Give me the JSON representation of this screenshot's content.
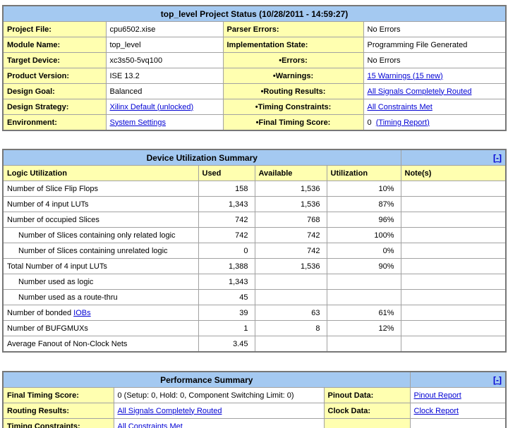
{
  "colors": {
    "header_blue": "#a4c9f1",
    "label_yellow": "#ffffb0",
    "link_blue": "#0000d4",
    "border_gray": "#a2a2a2",
    "page_background": "#ffffff"
  },
  "project_status": {
    "title": "top_level Project Status (10/28/2011 - 14:59:27)",
    "rows": [
      {
        "label1": "Project File:",
        "value1": {
          "text": "cpu6502.xise",
          "link": false
        },
        "label2": "Parser Errors:",
        "center2": false,
        "value2": {
          "text": "No Errors",
          "link": false
        }
      },
      {
        "label1": "Module Name:",
        "value1": {
          "text": "top_level",
          "link": false
        },
        "label2": "Implementation State:",
        "center2": false,
        "value2": {
          "text": "Programming File Generated",
          "link": false
        }
      },
      {
        "label1": "Target Device:",
        "value1": {
          "text": "xc3s50-5vq100",
          "link": false
        },
        "label2": "•Errors:",
        "center2": true,
        "value2": {
          "text": "No Errors",
          "link": false
        }
      },
      {
        "label1": "Product Version:",
        "value1": {
          "text": "ISE 13.2",
          "link": false
        },
        "label2": "•Warnings:",
        "center2": true,
        "value2": {
          "text": "15 Warnings (15 new)",
          "link": true
        }
      },
      {
        "label1": "Design Goal:",
        "value1": {
          "text": "Balanced",
          "link": false
        },
        "label2": "•Routing Results:",
        "center2": true,
        "value2": {
          "text": "All Signals Completely Routed",
          "link": true
        }
      },
      {
        "label1": "Design Strategy:",
        "value1": {
          "text": "Xilinx Default (unlocked)",
          "link": true
        },
        "label2": "•Timing Constraints:",
        "center2": true,
        "value2": {
          "text": "All Constraints Met",
          "link": true
        }
      },
      {
        "label1": "Environment:",
        "value1": {
          "text": "System Settings",
          "link": true
        },
        "label2": "•Final Timing Score:",
        "center2": true,
        "value2": {
          "text": "0",
          "link": false,
          "suffix_link": "(Timing Report)"
        }
      }
    ]
  },
  "device_utilization": {
    "title": "Device Utilization Summary",
    "collapse_label": "[-]",
    "columns": [
      "Logic Utilization",
      "Used",
      "Available",
      "Utilization",
      "Note(s)"
    ],
    "rows": [
      {
        "label": "Number of Slice Flip Flops",
        "indent": false,
        "used": "158",
        "available": "1,536",
        "utilization": "10%",
        "note": ""
      },
      {
        "label": "Number of 4 input LUTs",
        "indent": false,
        "used": "1,343",
        "available": "1,536",
        "utilization": "87%",
        "note": ""
      },
      {
        "label": "Number of occupied Slices",
        "indent": false,
        "used": "742",
        "available": "768",
        "utilization": "96%",
        "note": ""
      },
      {
        "label": "Number of Slices containing only related logic",
        "indent": true,
        "used": "742",
        "available": "742",
        "utilization": "100%",
        "note": ""
      },
      {
        "label": "Number of Slices containing unrelated logic",
        "indent": true,
        "used": "0",
        "available": "742",
        "utilization": "0%",
        "note": ""
      },
      {
        "label": "Total Number of 4 input LUTs",
        "indent": false,
        "used": "1,388",
        "available": "1,536",
        "utilization": "90%",
        "note": ""
      },
      {
        "label": "Number used as logic",
        "indent": true,
        "used": "1,343",
        "available": "",
        "utilization": "",
        "note": ""
      },
      {
        "label": "Number used as a route-thru",
        "indent": true,
        "used": "45",
        "available": "",
        "utilization": "",
        "note": ""
      },
      {
        "label": "Number of bonded ",
        "label_link": "IOBs",
        "indent": false,
        "used": "39",
        "available": "63",
        "utilization": "61%",
        "note": ""
      },
      {
        "label": "Number of BUFGMUXs",
        "indent": false,
        "used": "1",
        "available": "8",
        "utilization": "12%",
        "note": ""
      },
      {
        "label": "Average Fanout of Non-Clock Nets",
        "indent": false,
        "used": "3.45",
        "available": "",
        "utilization": "",
        "note": ""
      }
    ]
  },
  "performance_summary": {
    "title": "Performance Summary",
    "collapse_label": "[-]",
    "rows": [
      {
        "label1": "Final Timing Score:",
        "value1": {
          "text": "0 (Setup: 0, Hold: 0, Component Switching Limit: 0)",
          "link": false
        },
        "label2": "Pinout Data:",
        "value2": {
          "text": "Pinout Report",
          "link": true
        }
      },
      {
        "label1": "Routing Results:",
        "value1": {
          "text": "All Signals Completely Routed",
          "link": true
        },
        "label2": "Clock Data:",
        "value2": {
          "text": "Clock Report",
          "link": true
        }
      },
      {
        "label1": "Timing Constraints:",
        "value1": {
          "text": "All Constraints Met",
          "link": true
        },
        "label2": "",
        "value2": {
          "text": "",
          "link": false
        }
      }
    ]
  }
}
